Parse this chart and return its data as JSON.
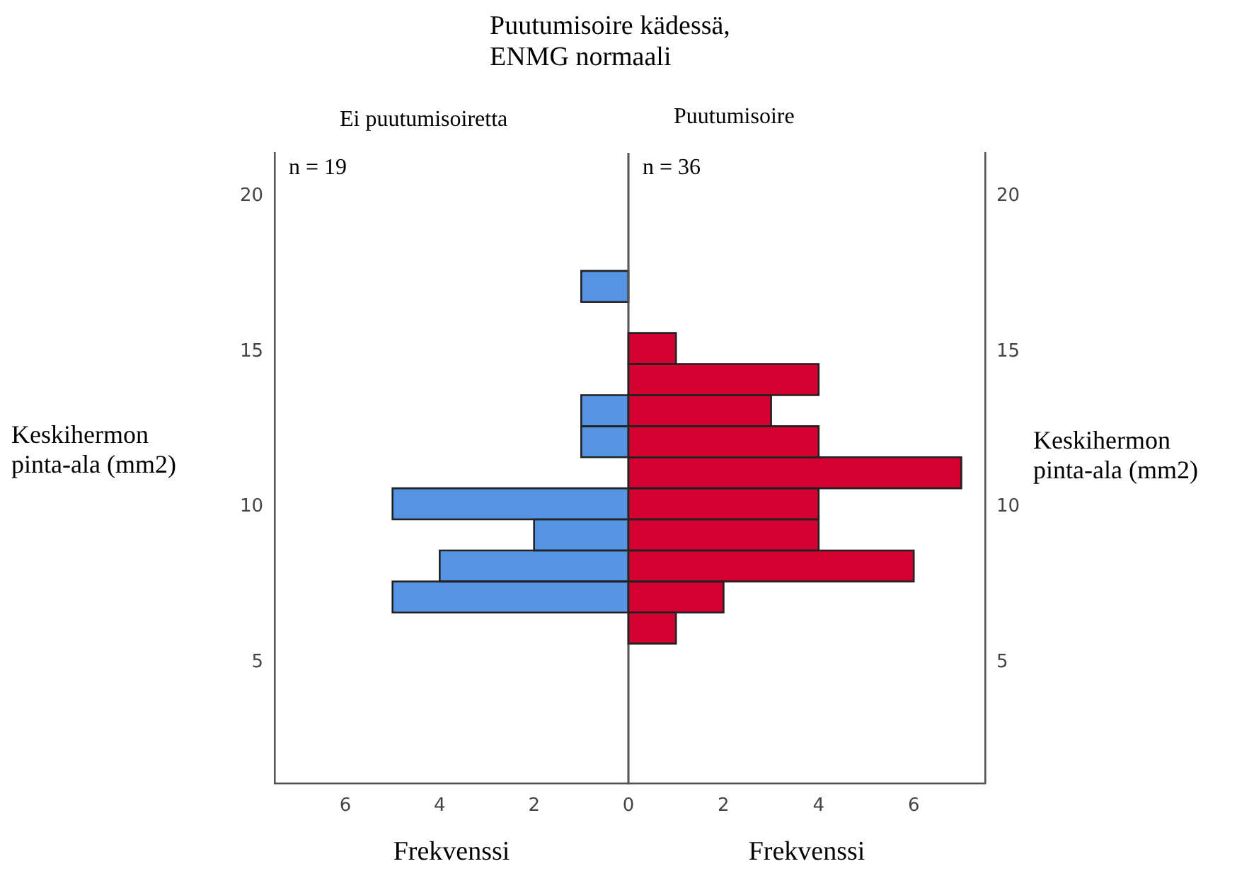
{
  "chart_data": [
    {
      "type": "histogram",
      "orientation": "horizontal",
      "title": "Puutumisoire kädessä,\nENMG normaali",
      "subtitle": "Ei puutumisoiretta",
      "annotations": [
        "n = 19"
      ],
      "xlabel": "Frekvenssi",
      "ylabel": "Keskihermon\npinta-ala (mm2)",
      "bins": [
        6.6,
        7.6,
        8.6,
        9.6,
        10.6,
        11.6,
        12.6,
        13.6,
        14.6,
        15.6,
        16.6,
        17.6
      ],
      "values": [
        5,
        4,
        2,
        5,
        0,
        1,
        1,
        0,
        0,
        0,
        1
      ],
      "color": "#5494e2",
      "xlim": [
        7.5,
        0
      ],
      "xticks": [
        6,
        4,
        2,
        0
      ],
      "ylim": [
        1.1,
        21.4
      ],
      "yticks": [
        5,
        10,
        15,
        20
      ],
      "grid": false
    },
    {
      "type": "histogram",
      "orientation": "horizontal",
      "subtitle": "Puutumisoire",
      "annotations": [
        "n = 36"
      ],
      "xlabel": "Frekvenssi",
      "ylabel": "Keskihermon\npinta-ala (mm2)",
      "bins": [
        5.6,
        6.6,
        7.6,
        8.6,
        9.6,
        10.6,
        11.6,
        12.6,
        13.6,
        14.6,
        15.6
      ],
      "values": [
        1,
        2,
        6,
        4,
        4,
        7,
        4,
        3,
        4,
        1
      ],
      "color": "#d4002f",
      "xlim": [
        0,
        7.5
      ],
      "xticks": [
        2,
        4,
        6
      ],
      "ylim": [
        1.1,
        21.4
      ],
      "yticks": [
        5,
        10,
        15,
        20
      ],
      "grid": false
    }
  ]
}
